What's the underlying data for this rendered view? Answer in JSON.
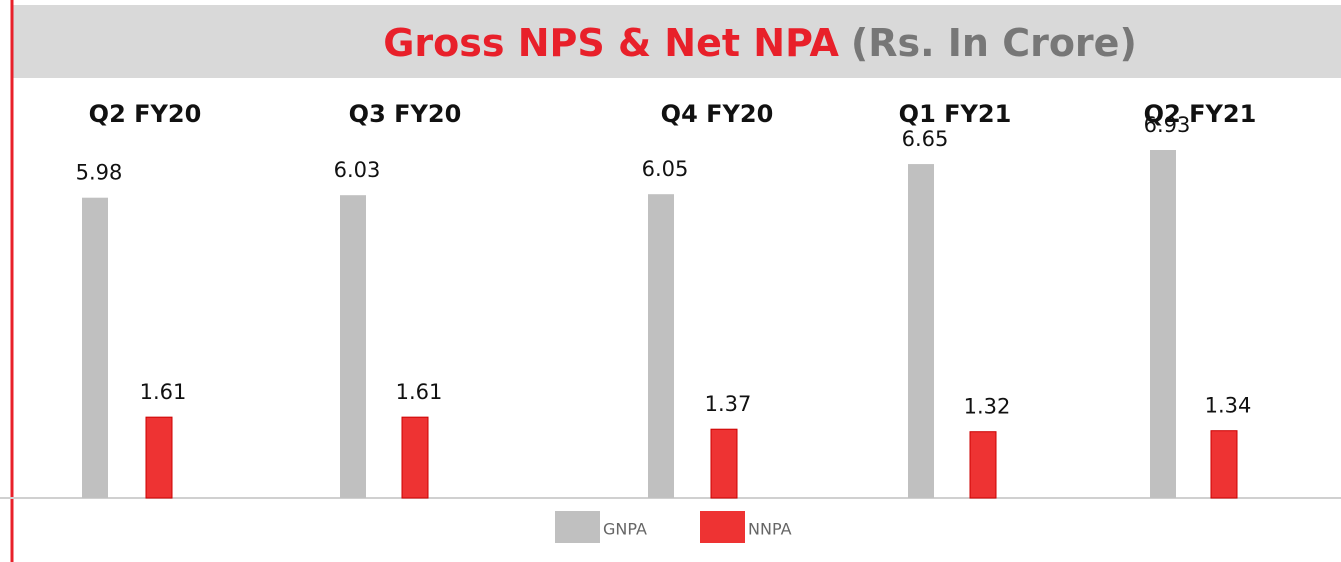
{
  "chart_data": {
    "type": "bar",
    "title": "Gross NPS & Net NPA",
    "subtitle": "(Rs. In Crore)",
    "categories": [
      "Q2 FY20",
      "Q3 FY20",
      "Q4 FY20",
      "Q1 FY21",
      "Q2 FY21"
    ],
    "series": [
      {
        "name": "GNPA",
        "color": "#c0c0c0",
        "values": [
          5.98,
          6.03,
          6.05,
          6.65,
          6.93
        ]
      },
      {
        "name": "NNPA",
        "color": "#ee3333",
        "values": [
          1.61,
          1.61,
          1.37,
          1.32,
          1.34
        ]
      }
    ],
    "legend": "bottom"
  }
}
